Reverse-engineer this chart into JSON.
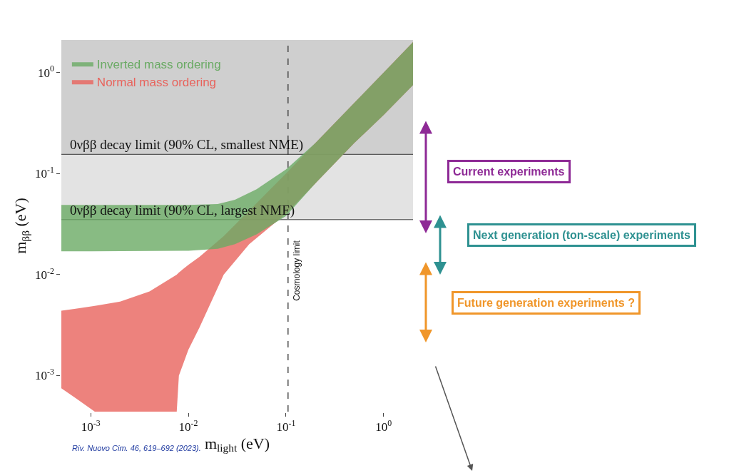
{
  "chart_data": {
    "type": "area",
    "xlabel": "m$_{light}$ (eV)",
    "ylabel": "m$_{ββ}$ (eV)",
    "log": "xy",
    "grid": false,
    "legend": "top left",
    "xlim": [
      0.0005,
      2
    ],
    "ylim": [
      0.00044,
      2.1
    ],
    "xticks": [
      {
        "value": 0.001,
        "label": "10$^{-3}$"
      },
      {
        "value": 0.01,
        "label": "10$^{-2}$"
      },
      {
        "value": 0.1,
        "label": "10$^{-1}$"
      },
      {
        "value": 1,
        "label": "10$^{0}$"
      }
    ],
    "yticks": [
      {
        "value": 0.001,
        "label": "10$^{-3}$"
      },
      {
        "value": 0.01,
        "label": "10$^{-2}$"
      },
      {
        "value": 0.1,
        "label": "10$^{-1}$"
      },
      {
        "value": 1,
        "label": "10$^{0}$"
      }
    ],
    "series": [
      {
        "name": "Inverted mass ordering",
        "color": "#6aaa64",
        "x": [
          0.0005,
          0.001,
          0.01,
          0.02,
          0.03,
          0.05,
          0.1,
          0.2,
          0.5,
          1,
          2
        ],
        "values": [
          null,
          null,
          null,
          null,
          null,
          null,
          null,
          null,
          null,
          null,
          null
        ],
        "upper": [
          0.049,
          0.049,
          0.049,
          0.05,
          0.055,
          0.07,
          0.11,
          0.2,
          0.5,
          1,
          2
        ],
        "lower": [
          0.017,
          0.017,
          0.0172,
          0.018,
          0.02,
          0.025,
          0.038,
          0.08,
          0.2,
          0.38,
          0.75
        ]
      },
      {
        "name": "Normal mass ordering",
        "color": "#e8635c",
        "x": [
          0.0005,
          0.0007,
          0.0011,
          0.002,
          0.004,
          0.0076,
          0.008,
          0.01,
          0.013,
          0.023,
          0.042,
          0.1,
          0.2,
          0.5,
          1,
          2
        ],
        "values": [
          null,
          null,
          null,
          null,
          null,
          null,
          null,
          null,
          null,
          null,
          null,
          null,
          null,
          null,
          null,
          null
        ],
        "upper": [
          0.0044,
          0.0046,
          0.0049,
          0.0054,
          0.0068,
          0.01,
          0.0105,
          0.0125,
          0.015,
          0.024,
          0.043,
          0.1,
          0.2,
          0.5,
          1,
          2
        ],
        "lower": [
          0.00075,
          0.0006,
          0.00044,
          0.00044,
          0.00044,
          0.00044,
          0.001,
          0.0018,
          0.003,
          0.01,
          0.02,
          0.04,
          0.08,
          0.2,
          0.38,
          0.75
        ]
      }
    ],
    "bands": [
      {
        "axis": "y",
        "from": 0.155,
        "to": 2.1,
        "label": "0νββ decay limit (90% CL, smallest NME)",
        "color": "#cfcfcf"
      },
      {
        "axis": "y",
        "from": 0.035,
        "to": 0.155,
        "label": "0νββ decay limit (90% CL, largest NME)",
        "color": "#e3e3e3"
      }
    ],
    "ref_lines": [
      {
        "axis": "x",
        "value": 0.105,
        "label": "Cosmology limit",
        "color": "#333333",
        "line_style": "dashed"
      },
      {
        "axis": "y",
        "value": 0.155,
        "color": "#333333",
        "line_style": "solid"
      },
      {
        "axis": "y",
        "value": 0.035,
        "color": "#333333",
        "line_style": "solid"
      }
    ],
    "annotations": [
      "Riv. Nuovo Cim. 46, 619–692 (2023).",
      "Current experiments",
      "Next generation (ton-scale) experiments",
      "Future generation experiments ?"
    ]
  }
}
